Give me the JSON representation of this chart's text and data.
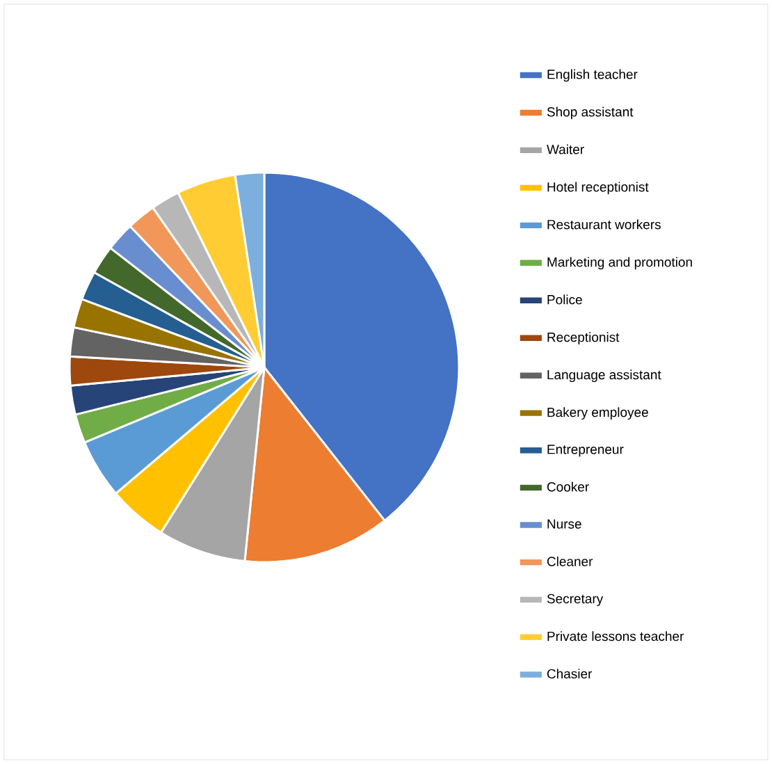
{
  "chart_data": {
    "type": "pie",
    "categories": [
      "English teacher",
      "Shop assistant",
      "Waiter",
      "Hotel receptionist",
      "Restaurant workers",
      "Marketing and promotion",
      "Police",
      "Receptionist",
      "Language assistant",
      "Bakery employee",
      "Entrepreneur",
      "Cooker",
      "Nurse",
      "Cleaner",
      "Secretary",
      "Private lessons teacher",
      "Chasier"
    ],
    "values": [
      39.4,
      12.2,
      7.3,
      4.9,
      4.9,
      2.4,
      2.4,
      2.4,
      2.4,
      2.4,
      2.4,
      2.4,
      2.4,
      2.4,
      2.4,
      4.9,
      2.4
    ],
    "colors": [
      "#4472c4",
      "#ed7d31",
      "#a5a5a5",
      "#ffc000",
      "#5b9bd5",
      "#70ad47",
      "#264478",
      "#9e480e",
      "#636363",
      "#997300",
      "#255e91",
      "#43682b",
      "#698ed0",
      "#f1975a",
      "#b7b7b7",
      "#ffcd33",
      "#7cafdd"
    ],
    "legend": "right"
  }
}
